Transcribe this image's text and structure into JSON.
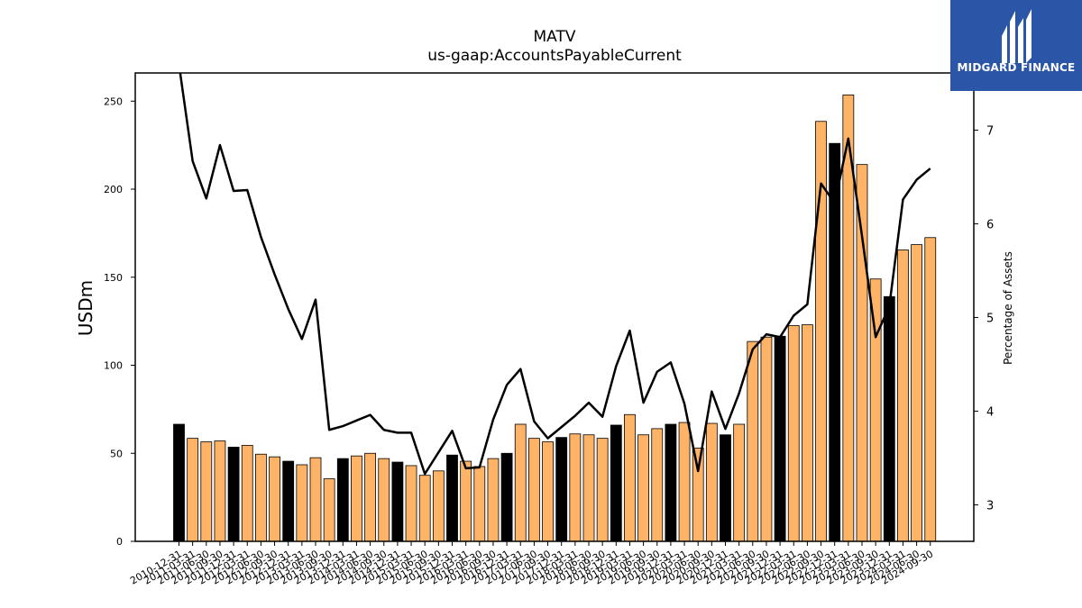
{
  "chart_data": {
    "type": "bar",
    "title": "MATV",
    "subtitle": "us-gaap:AccountsPayableCurrent",
    "ylabel": "USDm",
    "y2label": "Percentage of Assets",
    "ylim": [
      0,
      266
    ],
    "y2lim": [
      2.61,
      7.61
    ],
    "yticks": [
      0,
      50,
      100,
      150,
      200,
      250
    ],
    "y2ticks": [
      3,
      4,
      5,
      6,
      7
    ],
    "colors": {
      "annual": "#000000",
      "quarterly": "#ffb366",
      "line": "#000000"
    },
    "categories": [
      "2010-12-31",
      "2011-03-31",
      "2011-06-30",
      "2011-09-30",
      "2011-12-31",
      "2012-03-31",
      "2012-06-30",
      "2012-09-30",
      "2012-12-31",
      "2013-03-31",
      "2013-06-30",
      "2013-09-30",
      "2013-12-31",
      "2014-03-31",
      "2014-06-30",
      "2014-09-30",
      "2014-12-31",
      "2015-03-31",
      "2015-06-30",
      "2015-09-30",
      "2015-12-31",
      "2016-03-31",
      "2016-06-30",
      "2016-09-30",
      "2016-12-31",
      "2017-03-31",
      "2017-06-30",
      "2017-09-30",
      "2017-12-31",
      "2018-03-31",
      "2018-06-30",
      "2018-09-30",
      "2018-12-31",
      "2019-03-31",
      "2019-06-30",
      "2019-09-30",
      "2019-12-31",
      "2020-03-31",
      "2020-06-30",
      "2020-09-30",
      "2020-12-31",
      "2021-03-31",
      "2021-06-30",
      "2021-09-30",
      "2021-12-31",
      "2022-03-31",
      "2022-06-30",
      "2022-09-30",
      "2022-12-31",
      "2023-03-31",
      "2023-06-30",
      "2023-09-30",
      "2023-12-31",
      "2024-03-31",
      "2024-06-30",
      "2024-09-30"
    ],
    "series": [
      {
        "values": [
          66.5,
          58.5,
          56.5,
          57.0,
          53.5,
          54.5,
          49.5,
          48.0,
          45.5,
          43.5,
          47.5,
          35.5,
          47.0,
          48.5,
          50.0,
          47.0,
          45.0,
          43.0,
          37.5,
          40.0,
          49.0,
          45.5,
          42.5,
          47.0,
          50.0,
          66.5,
          58.5,
          56.5,
          59.0,
          61.0,
          60.5,
          58.5,
          66.0,
          72.0,
          60.5,
          64.0,
          66.5,
          67.5,
          53.0,
          67.0,
          60.5,
          66.5,
          113.5,
          116.0,
          116.5,
          122.5,
          123.0,
          238.5,
          226.0,
          253.5,
          214.0,
          149.0,
          139.0,
          165.5,
          168.5,
          172.5
        ]
      },
      {
        "name": "Percentage of Assets",
        "values": [
          7.7,
          6.67,
          6.27,
          6.84,
          6.35,
          6.36,
          5.86,
          5.46,
          5.09,
          4.77,
          5.19,
          3.8,
          3.84,
          3.9,
          3.96,
          3.8,
          3.77,
          3.77,
          3.33,
          3.56,
          3.79,
          3.39,
          3.4,
          3.91,
          4.28,
          4.45,
          3.89,
          3.71,
          3.83,
          3.95,
          4.09,
          3.94,
          4.48,
          4.86,
          4.09,
          4.42,
          4.52,
          4.08,
          3.36,
          4.21,
          3.81,
          4.19,
          4.66,
          4.82,
          4.79,
          5.02,
          5.14,
          6.43,
          6.22,
          6.91,
          5.87,
          4.79,
          5.12,
          6.26,
          6.47,
          6.59
        ]
      }
    ]
  },
  "logo": {
    "text": "MIDGARD FINANCE"
  }
}
